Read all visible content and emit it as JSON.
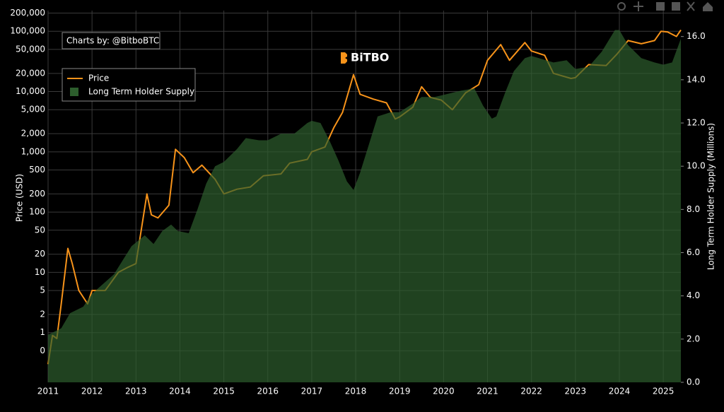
{
  "chart_data": {
    "type": "line",
    "credit": "Charts by: @BitboBTC",
    "logo": "BiTBO",
    "ylabel": "Price (USD)",
    "y2label": "Long Term Holder Supply (Millions)",
    "yscale": "log",
    "grid": true,
    "legend": "upper left",
    "xlim": [
      2011,
      2025.4
    ],
    "xticks": [
      2011,
      2012,
      2013,
      2014,
      2015,
      2016,
      2017,
      2018,
      2019,
      2020,
      2021,
      2022,
      2023,
      2024,
      2025
    ],
    "ylim": [
      0.15,
      220000
    ],
    "yticks": [
      {
        "value": 200000,
        "label": "200,000"
      },
      {
        "value": 100000,
        "label": "100,000"
      },
      {
        "value": 50000,
        "label": "50,000"
      },
      {
        "value": 20000,
        "label": "20,000"
      },
      {
        "value": 10000,
        "label": "10,000"
      },
      {
        "value": 5000,
        "label": "5,000"
      },
      {
        "value": 2000,
        "label": "2,000"
      },
      {
        "value": 1000,
        "label": "1,000"
      },
      500,
      200,
      100,
      50,
      20,
      10,
      5,
      2,
      1,
      {
        "value": 0.5,
        "label": "0"
      }
    ],
    "y2lim": [
      0,
      17.2
    ],
    "y2ticks": [
      {
        "value": 0,
        "label": "0.0"
      },
      {
        "value": 2,
        "label": "2.0"
      },
      {
        "value": 4,
        "label": "4.0"
      },
      {
        "value": 6,
        "label": "6.0"
      },
      {
        "value": 8,
        "label": "8.0"
      },
      {
        "value": 10,
        "label": "10.0"
      },
      {
        "value": 12,
        "label": "12.0"
      },
      {
        "value": 14,
        "label": "14.0"
      },
      {
        "value": 16,
        "label": "16.0"
      }
    ],
    "series": [
      {
        "name": "Price",
        "color": "#f7931a",
        "type": "line",
        "x": [
          2011.0,
          2011.1,
          2011.2,
          2011.3,
          2011.45,
          2011.55,
          2011.7,
          2011.9,
          2012.0,
          2012.3,
          2012.6,
          2012.8,
          2013.0,
          2013.25,
          2013.35,
          2013.5,
          2013.75,
          2013.9,
          2014.1,
          2014.3,
          2014.5,
          2014.8,
          2015.0,
          2015.3,
          2015.6,
          2015.9,
          2016.3,
          2016.5,
          2016.9,
          2017.0,
          2017.3,
          2017.5,
          2017.7,
          2017.95,
          2018.1,
          2018.4,
          2018.7,
          2018.9,
          2019.0,
          2019.3,
          2019.5,
          2019.7,
          2019.95,
          2020.2,
          2020.5,
          2020.8,
          2021.0,
          2021.3,
          2021.5,
          2021.85,
          2022.0,
          2022.3,
          2022.5,
          2022.9,
          2023.0,
          2023.3,
          2023.7,
          2023.95,
          2024.2,
          2024.5,
          2024.8,
          2024.95,
          2025.1,
          2025.3,
          2025.4
        ],
        "values": [
          0.3,
          0.9,
          0.8,
          3,
          25,
          14,
          5,
          3,
          5,
          5,
          10,
          12,
          14,
          200,
          90,
          80,
          130,
          1100,
          800,
          450,
          600,
          350,
          200,
          240,
          260,
          400,
          430,
          650,
          750,
          1000,
          1200,
          2500,
          4500,
          19000,
          9000,
          7500,
          6500,
          3500,
          3800,
          5500,
          12000,
          8000,
          7200,
          5000,
          9500,
          13000,
          33000,
          60000,
          33000,
          65000,
          47000,
          40000,
          20000,
          16500,
          17000,
          28000,
          27000,
          42000,
          70000,
          62000,
          70000,
          100000,
          97000,
          82000,
          105000
        ]
      },
      {
        "name": "Long Term Holder Supply",
        "color": "#2d5e2d",
        "type": "area",
        "axis": "y2",
        "x": [
          2011.0,
          2011.3,
          2011.5,
          2011.8,
          2012.0,
          2012.5,
          2012.9,
          2013.2,
          2013.4,
          2013.6,
          2013.8,
          2013.95,
          2014.2,
          2014.4,
          2014.6,
          2014.8,
          2015.0,
          2015.3,
          2015.5,
          2015.8,
          2016.0,
          2016.3,
          2016.6,
          2016.9,
          2017.0,
          2017.2,
          2017.4,
          2017.6,
          2017.8,
          2017.95,
          2018.1,
          2018.3,
          2018.5,
          2018.8,
          2019.0,
          2019.3,
          2019.5,
          2019.8,
          2020.0,
          2020.4,
          2020.7,
          2020.9,
          2021.1,
          2021.2,
          2021.4,
          2021.6,
          2021.85,
          2022.0,
          2022.5,
          2022.8,
          2023.0,
          2023.3,
          2023.6,
          2023.9,
          2024.0,
          2024.2,
          2024.5,
          2024.8,
          2025.0,
          2025.2,
          2025.4
        ],
        "values": [
          2.2,
          2.5,
          3.2,
          3.5,
          4.1,
          5.0,
          6.3,
          6.8,
          6.4,
          7.0,
          7.3,
          7.0,
          6.9,
          8.0,
          9.2,
          10.0,
          10.2,
          10.8,
          11.3,
          11.2,
          11.2,
          11.5,
          11.5,
          12.0,
          12.1,
          12.0,
          11.2,
          10.3,
          9.3,
          8.9,
          9.7,
          11.0,
          12.3,
          12.5,
          12.5,
          12.9,
          13.2,
          13.2,
          13.3,
          13.5,
          13.6,
          12.8,
          12.2,
          12.3,
          13.4,
          14.4,
          15.0,
          15.1,
          14.8,
          14.9,
          14.5,
          14.6,
          15.3,
          16.3,
          16.3,
          15.6,
          15.0,
          14.8,
          14.7,
          14.8,
          15.9
        ]
      }
    ]
  }
}
